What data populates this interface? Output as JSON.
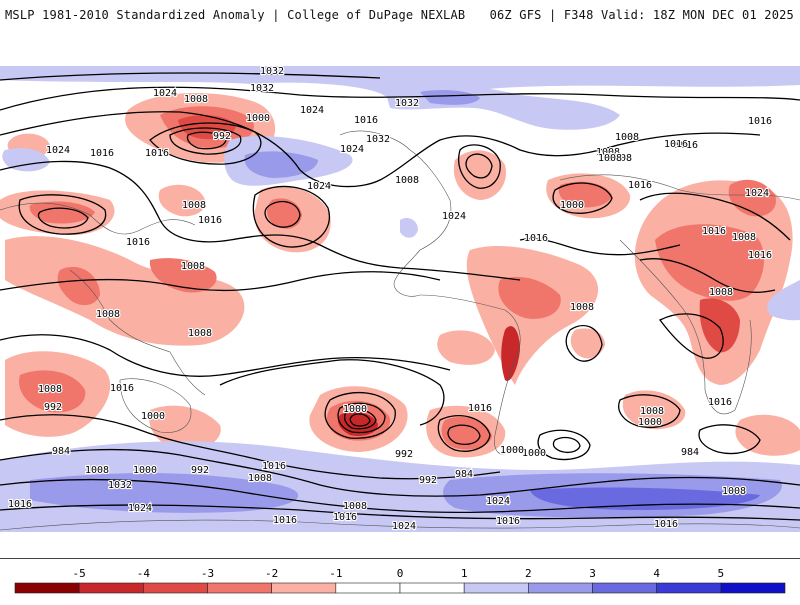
{
  "header": {
    "left_title": "MSLP 1981-2010 Standardized Anomaly | College of DuPage NEXLAB",
    "right_title": "06Z GFS | F348 Valid: 18Z MON DEC 01 2025"
  },
  "colorbar": {
    "ticks": [
      "-5",
      "-4",
      "-3",
      "-2",
      "-1",
      "0",
      "1",
      "2",
      "3",
      "4",
      "5"
    ],
    "colors": [
      "#8b0000",
      "#c8282a",
      "#e04a44",
      "#f0756a",
      "#fbb0a4",
      "#ffffff",
      "#ffffff",
      "#c8c8f4",
      "#9a9aea",
      "#6a6ae0",
      "#3a3ad6",
      "#1010c8"
    ]
  },
  "map": {
    "contour_labels": [
      {
        "text": "1032"
      },
      {
        "text": "1032"
      },
      {
        "text": "1024"
      },
      {
        "text": "1008"
      },
      {
        "text": "1000"
      },
      {
        "text": "992"
      },
      {
        "text": "1016"
      },
      {
        "text": "1024"
      },
      {
        "text": "1016"
      },
      {
        "text": "1032"
      },
      {
        "text": "1024"
      },
      {
        "text": "1016"
      },
      {
        "text": "1024"
      },
      {
        "text": "1032"
      },
      {
        "text": "1008"
      },
      {
        "text": "1024"
      },
      {
        "text": "1008"
      },
      {
        "text": "1016"
      },
      {
        "text": "1016"
      },
      {
        "text": "1024"
      },
      {
        "text": "1000"
      },
      {
        "text": "1008"
      },
      {
        "text": "1016"
      },
      {
        "text": "1008"
      },
      {
        "text": "1016"
      },
      {
        "text": "1016"
      },
      {
        "text": "1008"
      },
      {
        "text": "1008"
      },
      {
        "text": "1008"
      },
      {
        "text": "1016"
      },
      {
        "text": "1016"
      },
      {
        "text": "1008"
      },
      {
        "text": "1016"
      },
      {
        "text": "1008"
      },
      {
        "text": "1008"
      },
      {
        "text": "1016"
      },
      {
        "text": "1008"
      },
      {
        "text": "992"
      },
      {
        "text": "1000"
      },
      {
        "text": "1008"
      },
      {
        "text": "1000"
      },
      {
        "text": "1016"
      },
      {
        "text": "984"
      },
      {
        "text": "992"
      },
      {
        "text": "984"
      },
      {
        "text": "1000"
      },
      {
        "text": "992"
      },
      {
        "text": "1000"
      },
      {
        "text": "1016"
      },
      {
        "text": "984"
      },
      {
        "text": "1016"
      },
      {
        "text": "1008"
      },
      {
        "text": "1000"
      },
      {
        "text": "992"
      },
      {
        "text": "1032"
      },
      {
        "text": "1016"
      },
      {
        "text": "1008"
      },
      {
        "text": "1024"
      },
      {
        "text": "1000"
      },
      {
        "text": "1016"
      },
      {
        "text": "1008"
      },
      {
        "text": "1024"
      },
      {
        "text": "1016"
      },
      {
        "text": "1024"
      },
      {
        "text": "1016"
      },
      {
        "text": "1008"
      },
      {
        "text": "1016"
      },
      {
        "text": "1016"
      },
      {
        "text": "1008"
      },
      {
        "text": "1024"
      },
      {
        "text": "1008"
      }
    ]
  }
}
